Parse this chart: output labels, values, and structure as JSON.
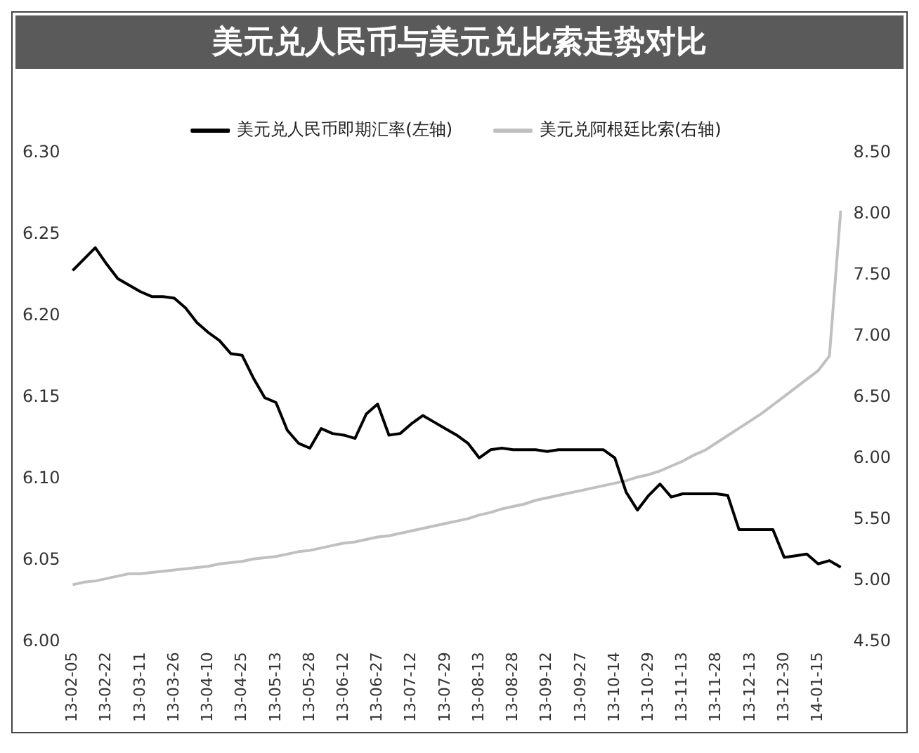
{
  "chart_data": {
    "type": "line",
    "title": "美元兑人民币与美元兑比索走势对比",
    "categories": [
      "13-02-05",
      null,
      null,
      "13-02-22",
      null,
      null,
      "13-03-11",
      null,
      null,
      "13-03-26",
      null,
      null,
      "13-04-10",
      null,
      null,
      "13-04-25",
      null,
      null,
      "13-05-13",
      null,
      null,
      "13-05-28",
      null,
      null,
      "13-06-12",
      null,
      null,
      "13-06-27",
      null,
      null,
      "13-07-12",
      null,
      null,
      "13-07-29",
      null,
      null,
      "13-08-13",
      null,
      null,
      "13-08-28",
      null,
      null,
      "13-09-12",
      null,
      null,
      "13-09-27",
      null,
      null,
      "13-10-14",
      null,
      null,
      "13-10-29",
      null,
      null,
      "13-11-13",
      null,
      null,
      "13-11-28",
      null,
      null,
      "13-12-13",
      null,
      null,
      "13-12-30",
      null,
      null,
      "14-01-15",
      null,
      null
    ],
    "series": [
      {
        "name": "美元兑人民币即期汇率(左轴)",
        "color": "#000000",
        "values": [
          6.228,
          6.235,
          6.242,
          6.232,
          6.223,
          6.219,
          6.215,
          6.212,
          6.212,
          6.211,
          6.205,
          6.196,
          6.19,
          6.185,
          6.177,
          6.176,
          6.162,
          6.15,
          6.147,
          6.13,
          6.122,
          6.119,
          6.131,
          6.128,
          6.127,
          6.125,
          6.14,
          6.146,
          6.127,
          6.128,
          6.134,
          6.139,
          6.135,
          6.131,
          6.127,
          6.122,
          6.113,
          6.118,
          6.119,
          6.118,
          6.118,
          6.118,
          6.117,
          6.118,
          6.118,
          6.118,
          6.118,
          6.118,
          6.113,
          6.092,
          6.081,
          6.09,
          6.097,
          6.089,
          6.091,
          6.091,
          6.091,
          6.091,
          6.09,
          6.069,
          6.069,
          6.069,
          6.069,
          6.052,
          6.053,
          6.054,
          6.048,
          6.05,
          6.046
        ]
      },
      {
        "name": "美元兑阿根廷比索(右轴)",
        "color": "#c0c0c0",
        "axis": "y2",
        "values": [
          4.97,
          4.99,
          5.0,
          5.02,
          5.04,
          5.06,
          5.06,
          5.07,
          5.08,
          5.09,
          5.1,
          5.11,
          5.12,
          5.14,
          5.15,
          5.16,
          5.18,
          5.19,
          5.2,
          5.22,
          5.24,
          5.25,
          5.27,
          5.29,
          5.31,
          5.32,
          5.34,
          5.36,
          5.37,
          5.39,
          5.41,
          5.43,
          5.45,
          5.47,
          5.49,
          5.51,
          5.54,
          5.56,
          5.59,
          5.61,
          5.63,
          5.66,
          5.68,
          5.7,
          5.72,
          5.74,
          5.76,
          5.78,
          5.8,
          5.82,
          5.85,
          5.87,
          5.9,
          5.94,
          5.98,
          6.03,
          6.07,
          6.13,
          6.19,
          6.25,
          6.31,
          6.37,
          6.44,
          6.51,
          6.58,
          6.65,
          6.72,
          6.84,
          8.03
        ]
      }
    ],
    "ylim": [
      6.0,
      6.3
    ],
    "yticks": [
      {
        "value": 6.0,
        "label": "6.00"
      },
      {
        "value": 6.05,
        "label": "6.05"
      },
      {
        "value": 6.1,
        "label": "6.10"
      },
      {
        "value": 6.15,
        "label": "6.15"
      },
      {
        "value": 6.2,
        "label": "6.20"
      },
      {
        "value": 6.25,
        "label": "6.25"
      },
      {
        "value": 6.3,
        "label": "6.30"
      }
    ],
    "y2lim": [
      4.5,
      8.5
    ],
    "y2ticks": [
      {
        "value": 4.5,
        "label": "4.50"
      },
      {
        "value": 5.0,
        "label": "5.00"
      },
      {
        "value": 5.5,
        "label": "5.50"
      },
      {
        "value": 6.0,
        "label": "6.00"
      },
      {
        "value": 6.5,
        "label": "6.50"
      },
      {
        "value": 7.0,
        "label": "7.00"
      },
      {
        "value": 7.5,
        "label": "7.50"
      },
      {
        "value": 8.0,
        "label": "8.00"
      },
      {
        "value": 8.5,
        "label": "8.50"
      }
    ],
    "legend": "top",
    "marker": "none",
    "line_style": "solid"
  }
}
